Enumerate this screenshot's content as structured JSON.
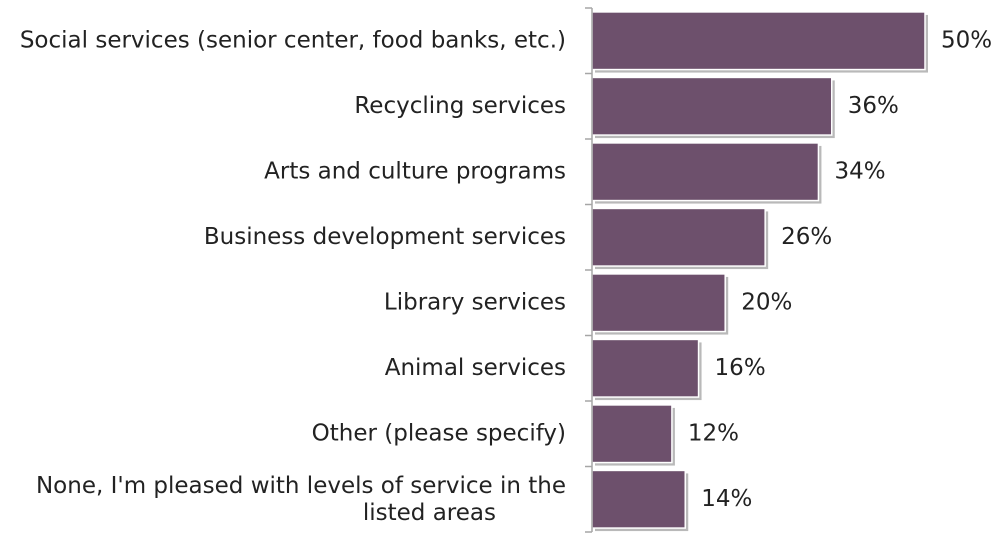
{
  "chart_data": {
    "type": "bar",
    "orientation": "horizontal",
    "title": "",
    "xlabel": "",
    "ylabel": "",
    "categories": [
      "Social services (senior center, food banks, etc.)",
      "Recycling services",
      "Arts and culture programs",
      "Business development services",
      "Library services",
      "Animal services",
      "Other (please specify)",
      "None, I'm pleased with levels of service in the listed areas"
    ],
    "category_lines": [
      [
        "Social services (senior center, food banks, etc.)"
      ],
      [
        "Recycling services"
      ],
      [
        "Arts and culture programs"
      ],
      [
        "Business development services"
      ],
      [
        "Library services"
      ],
      [
        "Animal services"
      ],
      [
        "Other (please specify)"
      ],
      [
        "None, I'm pleased with levels of service in the",
        "listed areas"
      ]
    ],
    "values": [
      50,
      36,
      34,
      26,
      20,
      16,
      12,
      14
    ],
    "value_labels": [
      "50%",
      "36%",
      "34%",
      "26%",
      "20%",
      "16%",
      "12%",
      "14%"
    ],
    "xlim": [
      0,
      50
    ],
    "grid": false,
    "legend": "none",
    "colors": {
      "bar": "#6d506c",
      "bar_edge": "#ffffff",
      "shadow": "#b9b9b9",
      "axis": "#a6a6a6",
      "text": "#222222"
    }
  }
}
